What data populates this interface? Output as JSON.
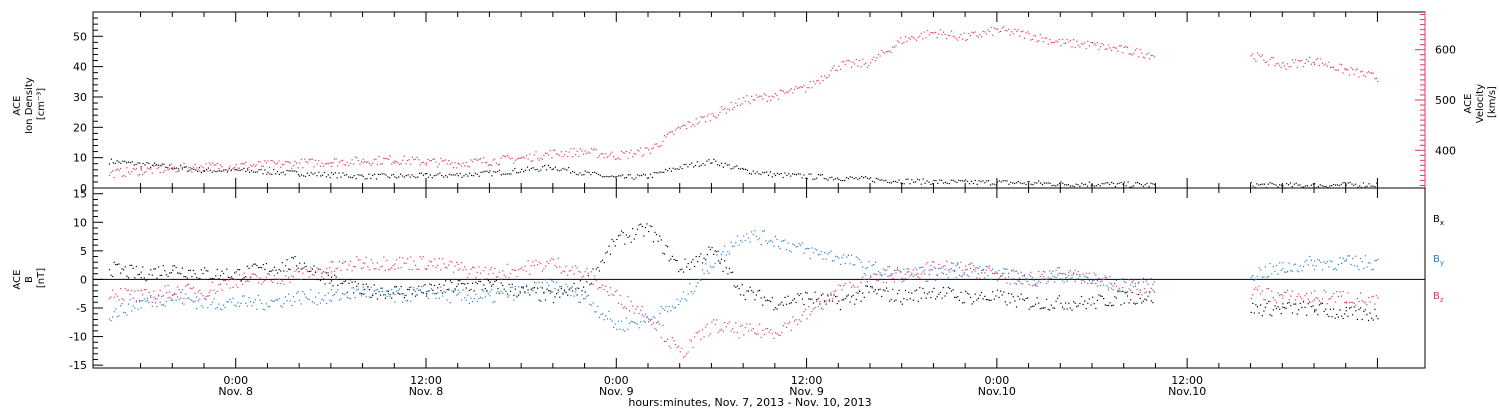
{
  "colors": {
    "black": "#000000",
    "blue": "#1f7fd6",
    "red": "#e8365e"
  },
  "chart_data": [
    {
      "type": "scatter",
      "panel": "top",
      "left_axis_label": [
        "ACE",
        "Ion Density",
        "[cm⁻³]"
      ],
      "right_axis_label": [
        "ACE",
        "Velocity",
        "[km/s]"
      ],
      "x_range_hours": [
        -9,
        75
      ],
      "ylim": [
        0,
        58
      ],
      "y_ticks": [
        0,
        10,
        20,
        30,
        40,
        50
      ],
      "right_ylim": [
        325,
        675
      ],
      "right_y_ticks": [
        400,
        500,
        600
      ],
      "grid": false,
      "series": [
        {
          "color": "#000000",
          "axis": "left",
          "x": [
            -8,
            -6,
            -4,
            -2,
            0,
            2,
            4,
            6,
            8,
            10,
            12,
            14,
            16,
            18,
            20,
            22,
            24,
            26,
            28,
            30,
            32,
            34,
            36,
            38,
            40,
            42,
            44,
            46,
            48,
            50,
            52,
            54,
            56,
            58,
            60,
            62,
            64,
            66,
            68,
            70,
            72
          ],
          "y": [
            9,
            8,
            7,
            6,
            6,
            5.5,
            5,
            4.5,
            4,
            4,
            4.2,
            4.5,
            5,
            6,
            7,
            5,
            3.5,
            4,
            7,
            9,
            6,
            4.5,
            4,
            3.5,
            3,
            2.5,
            2.2,
            2,
            2,
            1.8,
            1.5,
            1.5,
            1.3,
            1.2,
            null,
            null,
            1.2,
            1,
            1,
            1.2,
            1.3
          ]
        },
        {
          "color": "#e8365e",
          "axis": "right",
          "x": [
            -8,
            -6,
            -4,
            -2,
            0,
            2,
            4,
            6,
            8,
            10,
            12,
            14,
            16,
            18,
            20,
            22,
            24,
            26,
            28,
            30,
            32,
            34,
            36,
            38,
            40,
            42,
            44,
            46,
            48,
            50,
            52,
            54,
            56,
            58,
            60,
            62,
            64,
            66,
            68,
            70,
            72
          ],
          "y": [
            355,
            360,
            365,
            368,
            370,
            372,
            375,
            378,
            380,
            382,
            378,
            375,
            380,
            385,
            395,
            398,
            390,
            400,
            445,
            470,
            500,
            510,
            525,
            570,
            575,
            620,
            635,
            625,
            640,
            630,
            615,
            610,
            600,
            590,
            null,
            null,
            590,
            570,
            580,
            560,
            545
          ]
        }
      ]
    },
    {
      "type": "scatter",
      "panel": "bottom",
      "left_axis_label": [
        "ACE",
        "B",
        "[nT]"
      ],
      "x_range_hours": [
        -9,
        75
      ],
      "ylim": [
        -15.5,
        16
      ],
      "y_ticks": [
        -15,
        -10,
        -5,
        0,
        5,
        10,
        15
      ],
      "zero_line": true,
      "grid": false,
      "legend_position": "right",
      "x_ticks": [
        {
          "hour": 0,
          "time": "0:00",
          "date": "Nov. 8"
        },
        {
          "hour": 12,
          "time": "12:00",
          "date": "Nov. 8"
        },
        {
          "hour": 24,
          "time": "0:00",
          "date": "Nov. 9"
        },
        {
          "hour": 36,
          "time": "12:00",
          "date": "Nov. 9"
        },
        {
          "hour": 48,
          "time": "0:00",
          "date": "Nov.10"
        },
        {
          "hour": 60,
          "time": "12:00",
          "date": "Nov.10"
        }
      ],
      "xlabel": "hours:minutes, Nov. 7, 2013 - Nov. 10, 2013",
      "series": [
        {
          "name": "Bx",
          "label_main": "B",
          "label_sub": "x",
          "color": "#000000",
          "x": [
            -8,
            -6,
            -4,
            -2,
            0,
            2,
            4,
            6,
            8,
            10,
            12,
            14,
            16,
            18,
            20,
            22,
            24,
            26,
            28,
            30,
            32,
            34,
            36,
            38,
            40,
            42,
            44,
            46,
            48,
            50,
            52,
            54,
            56,
            58,
            60,
            62,
            64,
            66,
            68,
            70,
            72
          ],
          "y": [
            2,
            1,
            2,
            1,
            1,
            2,
            3,
            0,
            -2,
            -2,
            -2,
            -1,
            -1,
            -2,
            -3,
            -1,
            7,
            9,
            2,
            5,
            -2,
            -4,
            -3,
            -4,
            -2,
            -3,
            -2,
            -3,
            -3,
            -4,
            -4,
            -4,
            -3,
            -3,
            null,
            null,
            -5,
            -5,
            -5,
            -6,
            -6
          ]
        },
        {
          "name": "By",
          "label_main": "B",
          "label_sub": "y",
          "color": "#1f7fd6",
          "x": [
            -8,
            -6,
            -4,
            -2,
            0,
            2,
            4,
            6,
            8,
            10,
            12,
            14,
            16,
            18,
            20,
            22,
            24,
            26,
            28,
            30,
            32,
            34,
            36,
            38,
            40,
            42,
            44,
            46,
            48,
            50,
            52,
            54,
            56,
            58,
            60,
            62,
            64,
            66,
            68,
            70,
            72
          ],
          "y": [
            -6,
            -4,
            -3,
            -4,
            -4,
            -4,
            -3,
            -3,
            -2,
            -3,
            -2,
            -3,
            -3,
            -2,
            -1,
            -3,
            -8,
            -7,
            -4,
            3,
            8,
            7,
            5,
            4,
            2,
            1,
            1,
            2,
            1,
            0,
            1,
            0,
            -1,
            -1,
            null,
            null,
            1,
            2,
            3,
            3,
            3
          ]
        },
        {
          "name": "Bz",
          "label_main": "B",
          "label_sub": "z",
          "color": "#e8365e",
          "x": [
            -8,
            -6,
            -4,
            -2,
            0,
            2,
            4,
            6,
            8,
            10,
            12,
            14,
            16,
            18,
            20,
            22,
            24,
            26,
            28,
            30,
            32,
            34,
            36,
            38,
            40,
            42,
            44,
            46,
            48,
            50,
            52,
            54,
            56,
            58,
            60,
            62,
            64,
            66,
            68,
            70,
            72
          ],
          "y": [
            -2,
            -3,
            -2,
            -2,
            0,
            0,
            1,
            2,
            3,
            3,
            3,
            2,
            1,
            2,
            3,
            1,
            -3,
            -6,
            -13,
            -8,
            -9,
            -9,
            -6,
            -2,
            0,
            1,
            2,
            2,
            1,
            0,
            1,
            0,
            -1,
            -2,
            null,
            null,
            -2,
            -3,
            -3,
            -3,
            -4
          ]
        }
      ]
    }
  ]
}
